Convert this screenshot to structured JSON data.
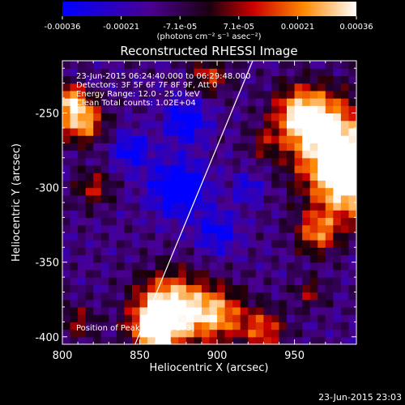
{
  "chart_data": {
    "type": "heatmap",
    "title": "Reconstructed RHESSI Image",
    "xlabel": "Heliocentric X (arcsec)",
    "ylabel": "Heliocentric Y (arcsec)",
    "xlim": [
      800,
      990
    ],
    "ylim": [
      -405,
      -215
    ],
    "xticks": [
      800,
      850,
      900,
      950
    ],
    "yticks": [
      -250,
      -300,
      -350,
      -400
    ],
    "colorbar": {
      "range": [
        -0.00036,
        0.00036
      ],
      "ticks": [
        "-0.00036",
        "-0.00021",
        "-7.1e-05",
        "7.1e-05",
        "0.00021",
        "0.00036"
      ],
      "unit_label": "(photons cm⁻² s⁻¹ asec⁻²)",
      "colormap": [
        "#0000ff",
        "#4a0090",
        "#000000",
        "#cc0000",
        "#ff8800",
        "#ffffff"
      ]
    },
    "annotations": [
      "23-Jun-2015 06:24:40.000 to 06:29:48.000",
      "Detectors: 3F 5F 6F 7F 8F 9F, Att 0",
      "Energy Range: 12.0 - 25.0 keV",
      "Clean    Total counts: 1.02E+04",
      "Position of Peak = [973,-273]"
    ],
    "limb_line": [
      [
        847,
        -405
      ],
      [
        923,
        -215
      ]
    ],
    "footer_timestamp": "23-Jun-2015 23:03"
  }
}
